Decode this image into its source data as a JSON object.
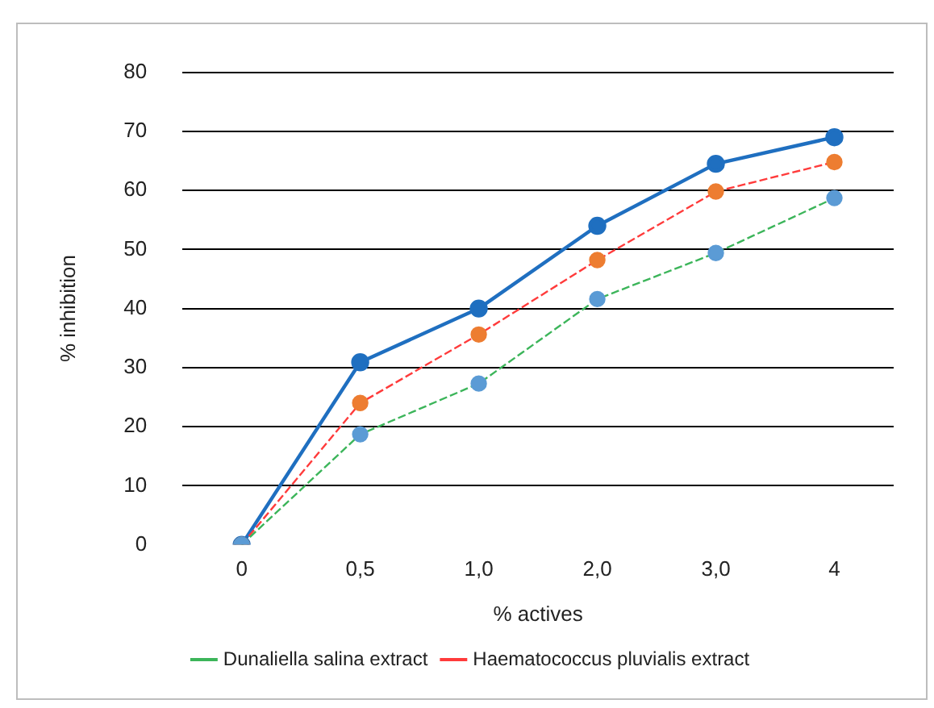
{
  "chart_data": {
    "type": "line",
    "xlabel": "% actives",
    "ylabel": "% inhibition",
    "categories": [
      "0",
      "0,5",
      "1,0",
      "2,0",
      "3,0",
      "4"
    ],
    "series": [
      {
        "name": "Dunaliella salina extract",
        "color": "#3cb55a",
        "colors": [
          "#5b9bd5",
          "#5b9bd5",
          "#5b9bd5",
          "#5b9bd5",
          "#5b9bd5",
          "#5b9bd5"
        ],
        "line_style": "dashed",
        "values": [
          0,
          18.7,
          27.3,
          41.6,
          49.4,
          58.7
        ]
      },
      {
        "name": "Haematococcus pluvialis extract",
        "color": "#ff3b3b",
        "colors": [
          "#ed7d31",
          "#ed7d31",
          "#ed7d31",
          "#ed7d31",
          "#ed7d31",
          "#ed7d31"
        ],
        "line_style": "dashed",
        "values": [
          0,
          24,
          35.6,
          48.2,
          59.8,
          64.8
        ]
      },
      {
        "color": "#1f6fc0",
        "colors": [
          "#1f6fc0",
          "#1f6fc0",
          "#1f6fc0",
          "#1f6fc0",
          "#1f6fc0",
          "#1f6fc0"
        ],
        "line_style": "solid",
        "values": [
          0,
          30.9,
          40,
          54,
          64.5,
          69
        ]
      }
    ],
    "ylim": [
      0,
      80
    ],
    "yticks": [
      0,
      10,
      20,
      30,
      40,
      50,
      60,
      70,
      80
    ],
    "grid": "y",
    "legend": "bottom",
    "marker": "circle"
  }
}
